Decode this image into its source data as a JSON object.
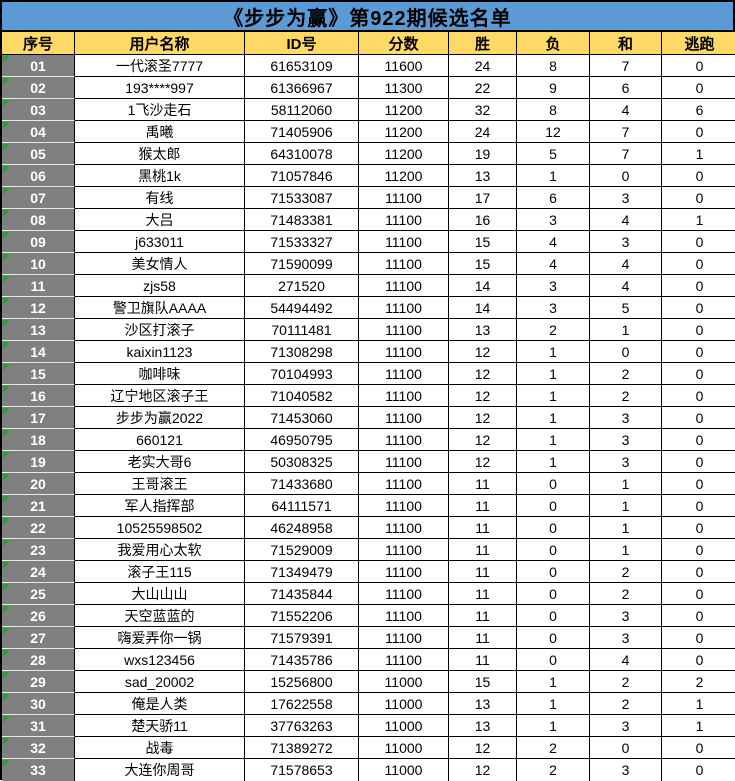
{
  "title": "《步步为赢》第922期候选名单",
  "colors": {
    "title_bg": "#5B9BD5",
    "header_bg": "#FFD966",
    "index_bg": "#808080",
    "index_text": "#ffffff",
    "grid_border": "#000000",
    "error_indicator_green": "#2E9E33"
  },
  "table": {
    "columns": [
      {
        "key": "index",
        "label": "序号"
      },
      {
        "key": "name",
        "label": "用户名称"
      },
      {
        "key": "id",
        "label": "ID号"
      },
      {
        "key": "score",
        "label": "分数"
      },
      {
        "key": "wins",
        "label": "胜"
      },
      {
        "key": "losses",
        "label": "负"
      },
      {
        "key": "draws",
        "label": "和"
      },
      {
        "key": "flees",
        "label": "逃跑"
      }
    ],
    "rows": [
      [
        "01",
        "一代滚圣7777",
        "61653109",
        "11600",
        "24",
        "8",
        "7",
        "0"
      ],
      [
        "02",
        "193****997",
        "61366967",
        "11300",
        "22",
        "9",
        "6",
        "0"
      ],
      [
        "03",
        "1飞沙走石",
        "58112060",
        "11200",
        "32",
        "8",
        "4",
        "6"
      ],
      [
        "04",
        "禹曦",
        "71405906",
        "11200",
        "24",
        "12",
        "7",
        "0"
      ],
      [
        "05",
        "猴太郎",
        "64310078",
        "11200",
        "19",
        "5",
        "7",
        "1"
      ],
      [
        "06",
        "黑桃1k",
        "71057846",
        "11200",
        "13",
        "1",
        "0",
        "0"
      ],
      [
        "07",
        "有线",
        "71533087",
        "11100",
        "17",
        "6",
        "3",
        "0"
      ],
      [
        "08",
        "大吕",
        "71483381",
        "11100",
        "16",
        "3",
        "4",
        "1"
      ],
      [
        "09",
        "j633011",
        "71533327",
        "11100",
        "15",
        "4",
        "3",
        "0"
      ],
      [
        "10",
        "美女情人",
        "71590099",
        "11100",
        "15",
        "4",
        "4",
        "0"
      ],
      [
        "11",
        "zjs58",
        "271520",
        "11100",
        "14",
        "3",
        "4",
        "0"
      ],
      [
        "12",
        "警卫旗队AAAA",
        "54494492",
        "11100",
        "14",
        "3",
        "5",
        "0"
      ],
      [
        "13",
        "沙区打滚子",
        "70111481",
        "11100",
        "13",
        "2",
        "1",
        "0"
      ],
      [
        "14",
        "kaixin1123",
        "71308298",
        "11100",
        "12",
        "1",
        "0",
        "0"
      ],
      [
        "15",
        "咖啡味",
        "70104993",
        "11100",
        "12",
        "1",
        "2",
        "0"
      ],
      [
        "16",
        "辽宁地区滚子王",
        "71040582",
        "11100",
        "12",
        "1",
        "2",
        "0"
      ],
      [
        "17",
        "步步为赢2022",
        "71453060",
        "11100",
        "12",
        "1",
        "3",
        "0"
      ],
      [
        "18",
        "660121",
        "46950795",
        "11100",
        "12",
        "1",
        "3",
        "0"
      ],
      [
        "19",
        "老实大哥6",
        "50308325",
        "11100",
        "12",
        "1",
        "3",
        "0"
      ],
      [
        "20",
        "王哥滚王",
        "71433680",
        "11100",
        "11",
        "0",
        "1",
        "0"
      ],
      [
        "21",
        "军人指挥部",
        "64111571",
        "11100",
        "11",
        "0",
        "1",
        "0"
      ],
      [
        "22",
        "10525598502",
        "46248958",
        "11100",
        "11",
        "0",
        "1",
        "0"
      ],
      [
        "23",
        "我爱用心太软",
        "71529009",
        "11100",
        "11",
        "0",
        "1",
        "0"
      ],
      [
        "24",
        "滚子王115",
        "71349479",
        "11100",
        "11",
        "0",
        "2",
        "0"
      ],
      [
        "25",
        "大山山山",
        "71435844",
        "11100",
        "11",
        "0",
        "2",
        "0"
      ],
      [
        "26",
        "天空蓝蓝的",
        "71552206",
        "11100",
        "11",
        "0",
        "3",
        "0"
      ],
      [
        "27",
        "嗨爱弄你一锅",
        "71579391",
        "11100",
        "11",
        "0",
        "3",
        "0"
      ],
      [
        "28",
        "wxs123456",
        "71435786",
        "11100",
        "11",
        "0",
        "4",
        "0"
      ],
      [
        "29",
        "sad_20002",
        "15256800",
        "11000",
        "15",
        "1",
        "2",
        "2"
      ],
      [
        "30",
        "俺是人类",
        "17622558",
        "11000",
        "13",
        "1",
        "2",
        "1"
      ],
      [
        "31",
        "楚天骄11",
        "37763263",
        "11000",
        "13",
        "1",
        "3",
        "1"
      ],
      [
        "32",
        "战毒",
        "71389272",
        "11000",
        "12",
        "2",
        "0",
        "0"
      ],
      [
        "33",
        "大连你周哥",
        "71578653",
        "11000",
        "12",
        "2",
        "3",
        "0"
      ]
    ]
  }
}
